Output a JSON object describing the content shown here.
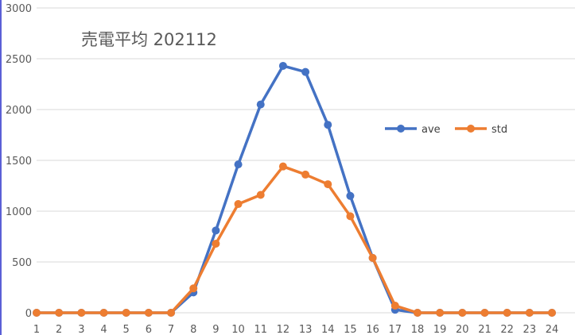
{
  "chart_data": {
    "type": "line",
    "title": "売電平均 202112",
    "xlabel": "",
    "ylabel": "",
    "x": [
      1,
      2,
      3,
      4,
      5,
      6,
      7,
      8,
      9,
      10,
      11,
      12,
      13,
      14,
      15,
      16,
      17,
      18,
      19,
      20,
      21,
      22,
      23,
      24
    ],
    "ylim": [
      0,
      3000
    ],
    "yticks": [
      0,
      500,
      1000,
      1500,
      2000,
      2500,
      3000
    ],
    "grid": true,
    "legend_position": "right",
    "series": [
      {
        "name": "ave",
        "color": "#4472C4",
        "values": [
          0,
          0,
          0,
          0,
          0,
          0,
          0,
          200,
          810,
          1460,
          2050,
          2430,
          2370,
          1850,
          1150,
          540,
          30,
          0,
          0,
          0,
          0,
          0,
          0,
          0
        ]
      },
      {
        "name": "std",
        "color": "#ED7D31",
        "values": [
          0,
          0,
          0,
          0,
          0,
          0,
          0,
          240,
          680,
          1070,
          1160,
          1440,
          1360,
          1265,
          950,
          540,
          70,
          0,
          0,
          0,
          0,
          0,
          0,
          0
        ]
      }
    ]
  }
}
